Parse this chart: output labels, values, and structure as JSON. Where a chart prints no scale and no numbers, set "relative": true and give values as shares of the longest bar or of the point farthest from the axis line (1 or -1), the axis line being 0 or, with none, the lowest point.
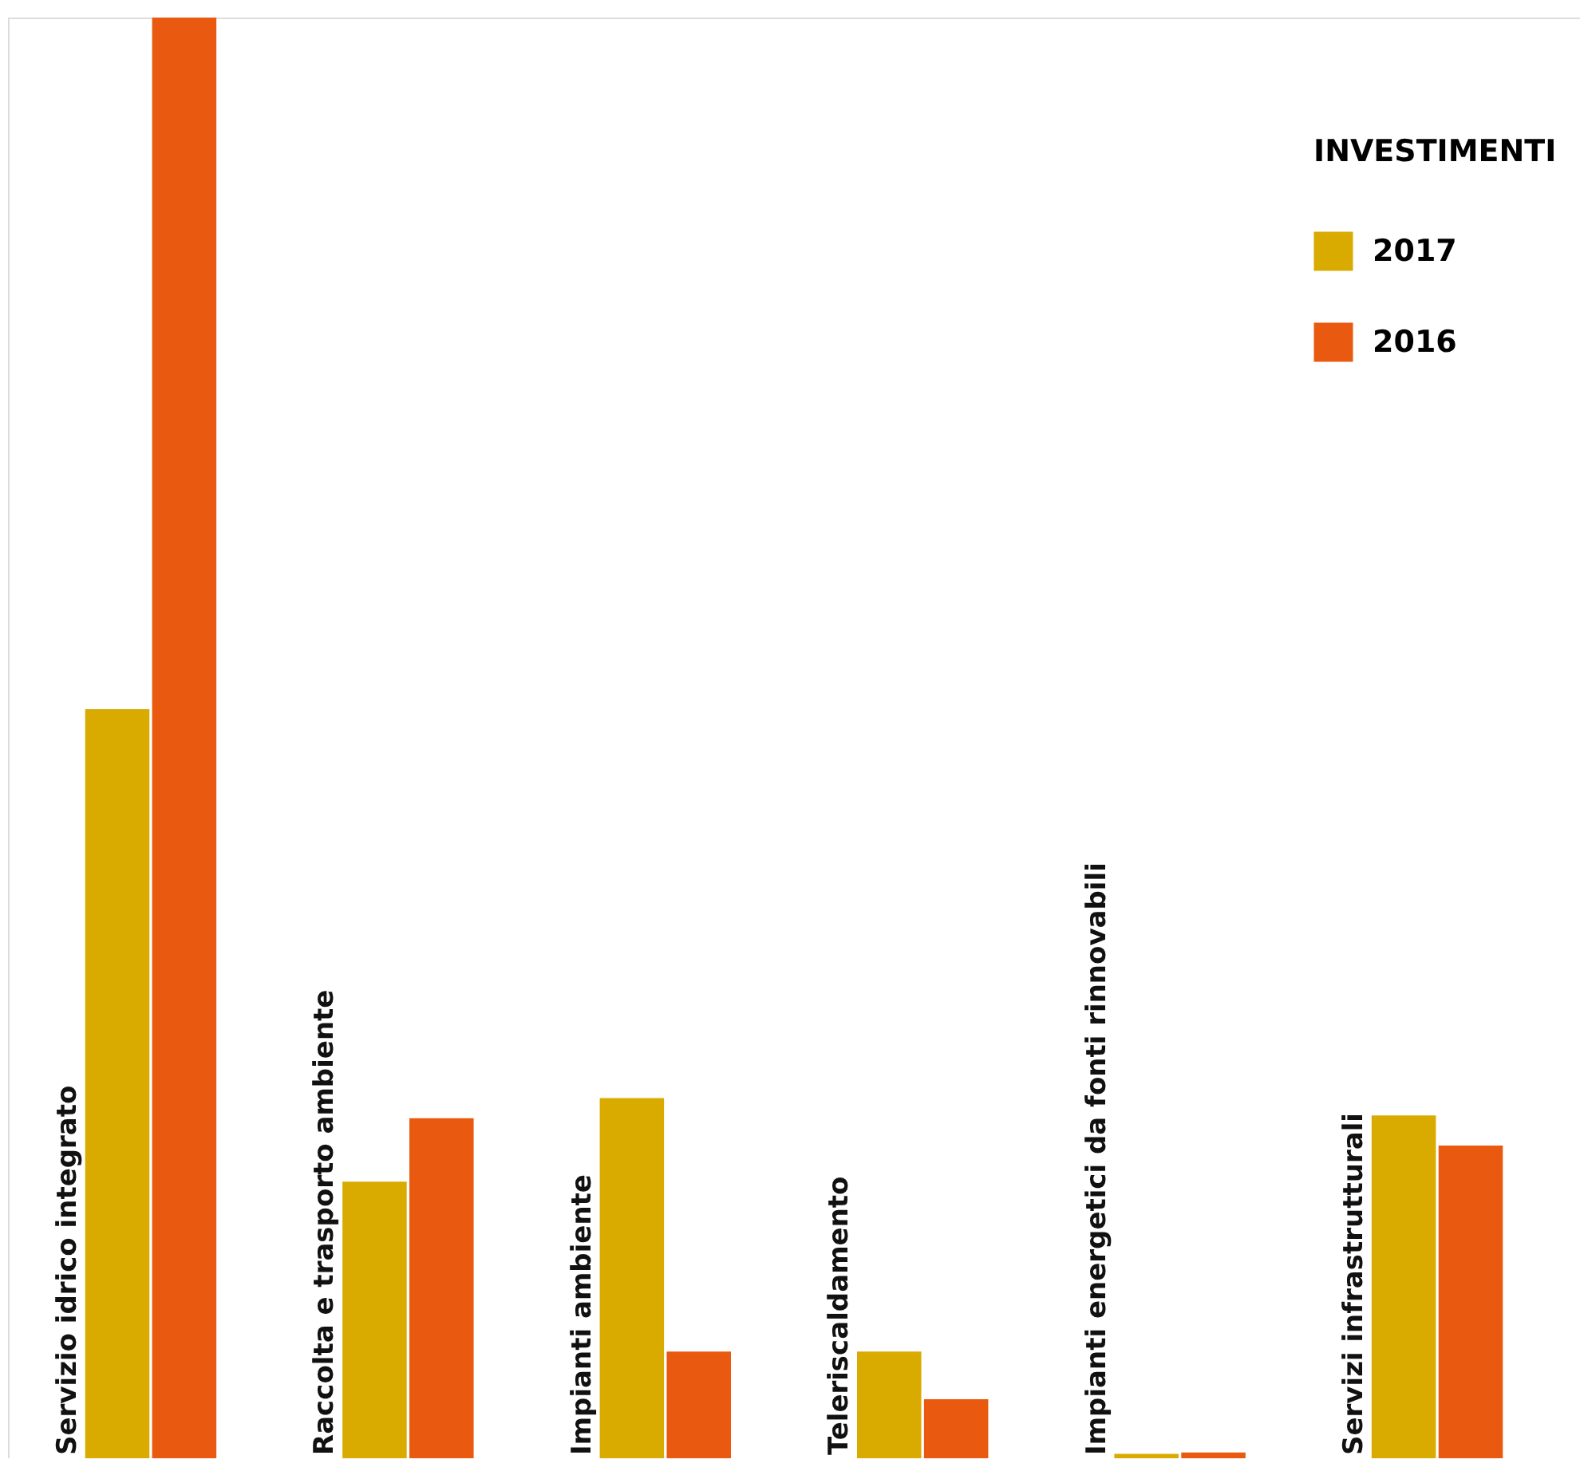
{
  "chart_data": {
    "type": "bar",
    "relative": true,
    "legend_title": "INVESTIMENTI",
    "legend": "top right",
    "categories": [
      "Servizio idrico integrato",
      "Raccolta e trasporto ambiente",
      "Impianti ambiente",
      "Teleriscaldamento",
      "Impianti energetici da fonti rinnovabili",
      "Servizi infrastrutturali"
    ],
    "series": [
      {
        "name": "2017",
        "color": "#d9aa00",
        "values": [
          0.52,
          0.192,
          0.25,
          0.074,
          0.003,
          0.238
        ]
      },
      {
        "name": "2016",
        "color": "#e9590f",
        "values": [
          1,
          0.236,
          0.074,
          0.041,
          0.004,
          0.217
        ]
      }
    ]
  }
}
